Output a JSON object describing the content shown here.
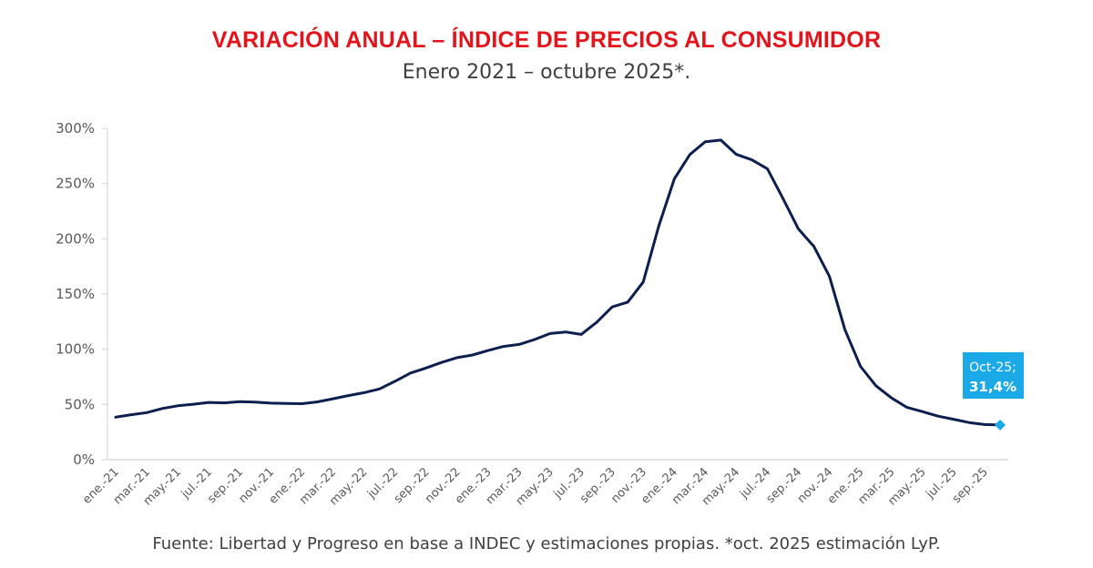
{
  "header": {
    "title": "VARIACIÓN ANUAL – ÍNDICE DE PRECIOS AL CONSUMIDOR",
    "subtitle": "Enero 2021 – octubre 2025*."
  },
  "footer": {
    "source": "Fuente: Libertad y Progreso en base a INDEC y estimaciones propias. *oct. 2025 estimación LyP."
  },
  "colors": {
    "title": "#e3141b",
    "line": "#0d1f4f",
    "highlight": "#1ba9e8",
    "axis": "#d9d9d9",
    "text": "#595959"
  },
  "chart_data": {
    "type": "line",
    "title": "VARIACIÓN ANUAL – ÍNDICE DE PRECIOS AL CONSUMIDOR",
    "subtitle": "Enero 2021 – octubre 2025*.",
    "xlabel": "",
    "ylabel": "",
    "ylim": [
      0,
      300
    ],
    "yticks": [
      "0%",
      "50%",
      "100%",
      "150%",
      "200%",
      "250%",
      "300%"
    ],
    "ytick_values": [
      0,
      50,
      100,
      150,
      200,
      250,
      300
    ],
    "grid": false,
    "legend": "none",
    "x_tick_labels": [
      "ene.-21",
      "mar.-21",
      "may.-21",
      "jul.-21",
      "sep.-21",
      "nov.-21",
      "ene.-22",
      "mar.-22",
      "may.-22",
      "jul.-22",
      "sep.-22",
      "nov.-22",
      "ene.-23",
      "mar.-23",
      "may.-23",
      "jul.-23",
      "sep.-23",
      "nov.-23",
      "ene.-24",
      "mar.-24",
      "may.-24",
      "jul.-24",
      "sep.-24",
      "nov.-24",
      "ene.-25",
      "mar.-25",
      "may.-25",
      "jul.-25",
      "sep.-25"
    ],
    "x_tick_every": 2,
    "series": [
      {
        "name": "Variación anual IPC",
        "unit": "%",
        "start": "ene.-21",
        "values": [
          38.5,
          40.7,
          42.6,
          46.3,
          48.8,
          50.2,
          51.8,
          51.4,
          52.5,
          52.1,
          51.2,
          50.9,
          50.7,
          52.3,
          55.1,
          58.0,
          60.7,
          64.0,
          71.0,
          78.5,
          83.0,
          88.0,
          92.4,
          94.8,
          98.8,
          102.5,
          104.3,
          108.8,
          114.2,
          115.6,
          113.4,
          124.4,
          138.3,
          142.7,
          160.9,
          211.4,
          254.2,
          276.2,
          287.9,
          289.4,
          276.4,
          271.5,
          263.4,
          236.7,
          209.0,
          193.0,
          166.0,
          117.8,
          84.5,
          66.9,
          55.9,
          47.3,
          43.5,
          39.4,
          36.6,
          33.6,
          31.8,
          31.4
        ]
      }
    ],
    "annotations": [
      {
        "point": "Oct-25",
        "value": 31.4,
        "line1": "Oct-25;",
        "line2": "31,4%"
      }
    ]
  }
}
